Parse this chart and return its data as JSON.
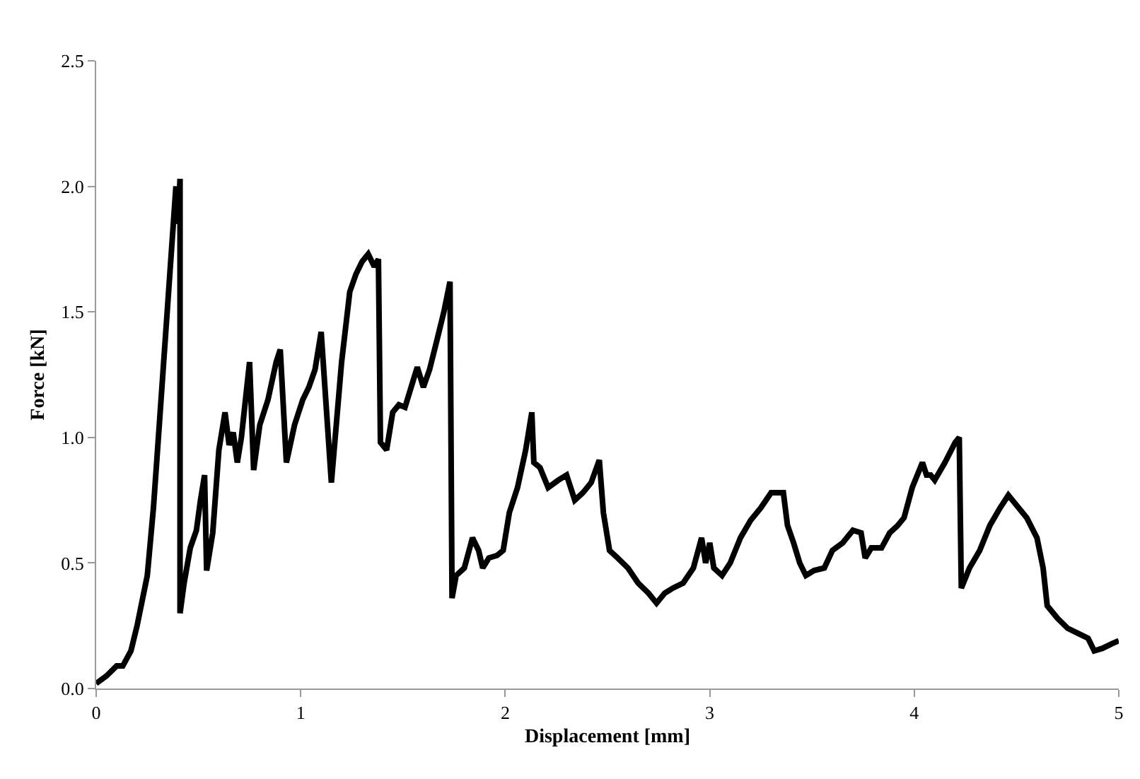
{
  "chart_data": {
    "type": "line",
    "xlabel": "Displacement [mm]",
    "ylabel": "Force [kN]",
    "xlim": [
      0,
      5
    ],
    "xticks": [
      0,
      1,
      2,
      3,
      4,
      5
    ],
    "ylim": [
      0,
      2.5
    ],
    "yticks": [
      {
        "value": 0,
        "label": "0.0"
      },
      {
        "value": 0.5,
        "label": "0.5"
      },
      {
        "value": 1,
        "label": "1.0"
      },
      {
        "value": 1.5,
        "label": "1.5"
      },
      {
        "value": 2,
        "label": "2.0"
      },
      {
        "value": 2.5,
        "label": "2.5"
      }
    ],
    "grid": false,
    "marker": "none",
    "line_style": "solid",
    "series": [
      {
        "color": "#000000",
        "x": [
          0,
          0.05,
          0.1,
          0.13,
          0.17,
          0.2,
          0.25,
          0.28,
          0.3,
          0.33,
          0.36,
          0.39,
          0.4,
          0.41,
          0.41,
          0.43,
          0.46,
          0.49,
          0.51,
          0.53,
          0.54,
          0.57,
          0.6,
          0.63,
          0.65,
          0.67,
          0.69,
          0.71,
          0.73,
          0.75,
          0.77,
          0.8,
          0.84,
          0.88,
          0.9,
          0.93,
          0.97,
          1.01,
          1.04,
          1.07,
          1.1,
          1.15,
          1.2,
          1.24,
          1.27,
          1.3,
          1.33,
          1.36,
          1.38,
          1.39,
          1.42,
          1.45,
          1.48,
          1.51,
          1.54,
          1.57,
          1.6,
          1.63,
          1.67,
          1.7,
          1.73,
          1.74,
          1.76,
          1.8,
          1.84,
          1.87,
          1.89,
          1.92,
          1.96,
          1.99,
          2.02,
          2.06,
          2.1,
          2.13,
          2.14,
          2.17,
          2.21,
          2.26,
          2.3,
          2.34,
          2.38,
          2.42,
          2.46,
          2.48,
          2.51,
          2.55,
          2.6,
          2.65,
          2.7,
          2.74,
          2.78,
          2.82,
          2.87,
          2.92,
          2.96,
          2.98,
          3.0,
          3.02,
          3.06,
          3.1,
          3.15,
          3.2,
          3.25,
          3.3,
          3.36,
          3.38,
          3.41,
          3.44,
          3.47,
          3.51,
          3.56,
          3.6,
          3.65,
          3.7,
          3.74,
          3.76,
          3.79,
          3.84,
          3.88,
          3.92,
          3.95,
          3.99,
          4.04,
          4.06,
          4.08,
          4.1,
          4.15,
          4.2,
          4.22,
          4.23,
          4.27,
          4.32,
          4.37,
          4.42,
          4.46,
          4.5,
          4.55,
          4.6,
          4.63,
          4.65,
          4.7,
          4.75,
          4.8,
          4.85,
          4.88,
          4.92,
          4.97,
          5.0
        ],
        "values": [
          0.02,
          0.05,
          0.09,
          0.09,
          0.15,
          0.25,
          0.45,
          0.72,
          0.95,
          1.3,
          1.65,
          2.0,
          1.85,
          2.03,
          0.3,
          0.42,
          0.56,
          0.63,
          0.75,
          0.85,
          0.47,
          0.62,
          0.95,
          1.1,
          0.97,
          1.02,
          0.9,
          1.0,
          1.15,
          1.3,
          0.87,
          1.05,
          1.15,
          1.3,
          1.35,
          0.9,
          1.05,
          1.15,
          1.2,
          1.27,
          1.42,
          0.82,
          1.3,
          1.58,
          1.65,
          1.7,
          1.73,
          1.68,
          1.71,
          0.98,
          0.95,
          1.1,
          1.13,
          1.12,
          1.2,
          1.28,
          1.2,
          1.27,
          1.4,
          1.5,
          1.62,
          0.36,
          0.45,
          0.48,
          0.6,
          0.55,
          0.48,
          0.52,
          0.53,
          0.55,
          0.7,
          0.8,
          0.95,
          1.1,
          0.9,
          0.88,
          0.8,
          0.83,
          0.85,
          0.75,
          0.78,
          0.82,
          0.91,
          0.7,
          0.55,
          0.52,
          0.48,
          0.42,
          0.38,
          0.34,
          0.38,
          0.4,
          0.42,
          0.48,
          0.6,
          0.5,
          0.58,
          0.48,
          0.45,
          0.5,
          0.6,
          0.67,
          0.72,
          0.78,
          0.78,
          0.65,
          0.58,
          0.5,
          0.45,
          0.47,
          0.48,
          0.55,
          0.58,
          0.63,
          0.62,
          0.52,
          0.56,
          0.56,
          0.62,
          0.65,
          0.68,
          0.8,
          0.9,
          0.85,
          0.85,
          0.83,
          0.9,
          0.98,
          1.0,
          0.4,
          0.48,
          0.55,
          0.65,
          0.72,
          0.77,
          0.73,
          0.68,
          0.6,
          0.48,
          0.33,
          0.28,
          0.24,
          0.22,
          0.2,
          0.15,
          0.16,
          0.18,
          0.19
        ]
      }
    ]
  }
}
